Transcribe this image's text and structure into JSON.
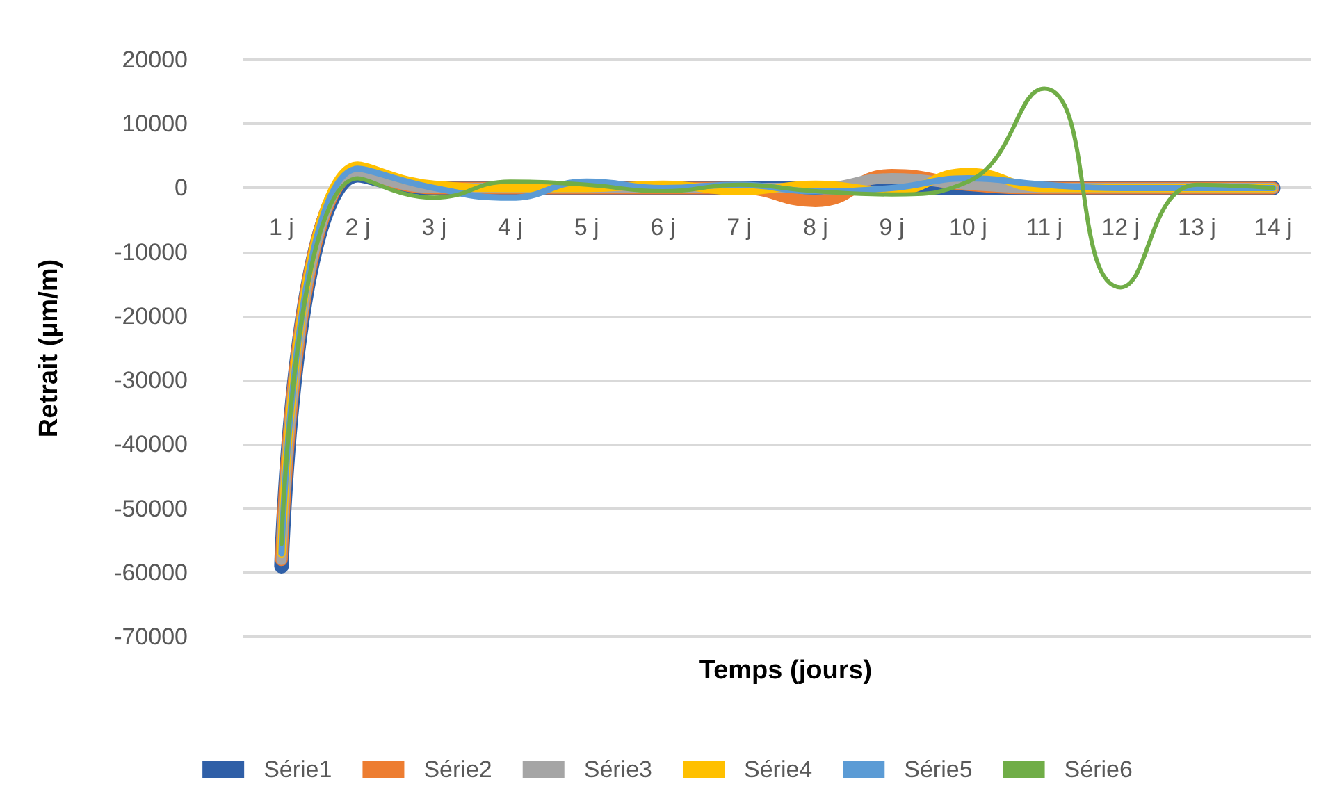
{
  "chart_data": {
    "type": "line",
    "xlabel": "Temps (jours)",
    "ylabel": "Retrait (µm/m)",
    "categories": [
      "1 j",
      "2 j",
      "3 j",
      "4 j",
      "5 j",
      "6 j",
      "7 j",
      "8 j",
      "9 j",
      "10 j",
      "11 j",
      "12 j",
      "13 j",
      "14 j"
    ],
    "series": [
      {
        "name": "Série1",
        "color": "#2f5fa7",
        "values": [
          -59000,
          2000,
          0,
          0,
          0,
          0,
          0,
          0,
          0,
          0,
          0,
          0,
          0,
          0
        ]
      },
      {
        "name": "Série2",
        "color": "#ed7d31",
        "values": [
          -58000,
          2500,
          0,
          0,
          0,
          0,
          0,
          -2000,
          2000,
          500,
          0,
          0,
          0,
          0
        ]
      },
      {
        "name": "Série3",
        "color": "#a5a5a5",
        "values": [
          -58000,
          2500,
          0,
          0,
          0,
          0,
          0,
          0,
          1500,
          500,
          0,
          0,
          0,
          0
        ]
      },
      {
        "name": "Série4",
        "color": "#ffc000",
        "values": [
          -57000,
          3500,
          500,
          0,
          0,
          500,
          -500,
          500,
          -500,
          2500,
          0,
          0,
          0,
          0
        ]
      },
      {
        "name": "Série5",
        "color": "#5b9bd5",
        "values": [
          -57000,
          3000,
          0,
          -1500,
          1000,
          0,
          500,
          -500,
          0,
          1500,
          500,
          0,
          0,
          0
        ]
      },
      {
        "name": "Série6",
        "color": "#70ad47",
        "values": [
          -55500,
          1500,
          -1500,
          1000,
          500,
          -500,
          500,
          -500,
          -1000,
          1000,
          15500,
          -15500,
          500,
          0
        ]
      }
    ],
    "ylim": [
      -70000,
      20000
    ],
    "yticks": [
      -70000,
      -60000,
      -50000,
      -40000,
      -30000,
      -20000,
      -10000,
      0,
      10000,
      20000
    ],
    "grid": "y",
    "legend": "bottom",
    "marker": "none",
    "line_style": "solid"
  }
}
